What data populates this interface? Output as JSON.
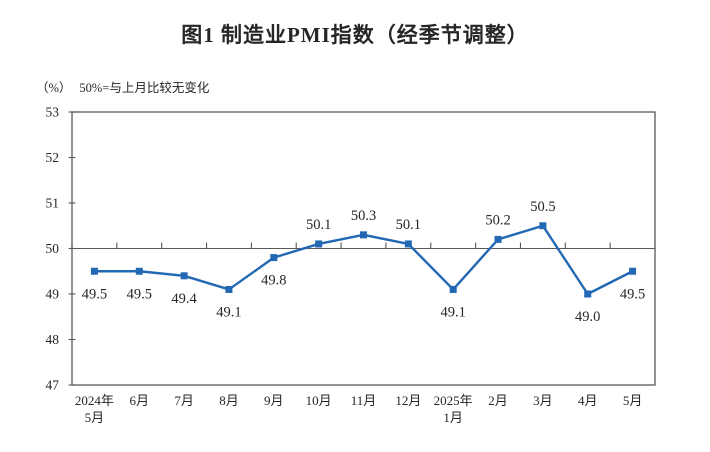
{
  "chart_data": {
    "type": "line",
    "title": "图1 制造业PMI指数（经季节调整）",
    "unit_label": "（%）",
    "note": "50%=与上月比较无变化",
    "categories": [
      "2024年\n5月",
      "6月",
      "7月",
      "8月",
      "9月",
      "10月",
      "11月",
      "12月",
      "2025年\n1月",
      "2月",
      "3月",
      "4月",
      "5月"
    ],
    "values": [
      49.5,
      49.5,
      49.4,
      49.1,
      49.8,
      50.1,
      50.3,
      50.1,
      49.1,
      50.2,
      50.5,
      49.0,
      49.5
    ],
    "yticks": [
      47,
      48,
      49,
      50,
      51,
      52,
      53
    ],
    "ylim": [
      47,
      53
    ],
    "reference_line": 50,
    "grid": false,
    "legend": false,
    "marker": "square",
    "colors": {
      "line": "#2268b3",
      "marker": "#2268b3",
      "axis": "#595959",
      "text": "#262626"
    }
  }
}
